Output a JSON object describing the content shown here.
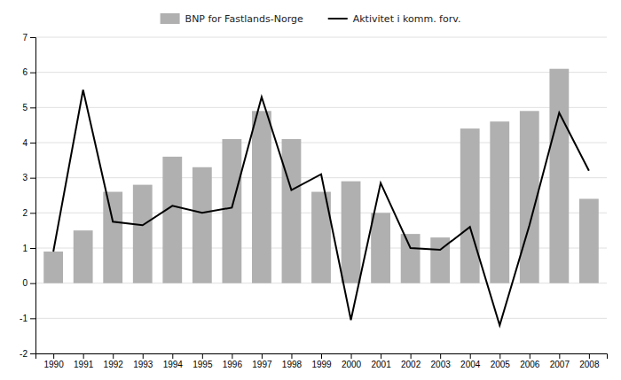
{
  "chart_data": {
    "type": "bar",
    "x": [
      1990,
      1991,
      1992,
      1993,
      1994,
      1995,
      1996,
      1997,
      1998,
      1999,
      2000,
      2001,
      2002,
      2003,
      2004,
      2005,
      2006,
      2007,
      2008
    ],
    "xlim": [
      1989.4,
      2008.6
    ],
    "xticks": [
      1990,
      1991,
      1992,
      1993,
      1994,
      1995,
      1996,
      1997,
      1998,
      1999,
      2000,
      2001,
      2002,
      2003,
      2004,
      2005,
      2006,
      2007,
      2008
    ],
    "ylim": [
      -2,
      7
    ],
    "yticks": [
      -2,
      -1,
      0,
      1,
      2,
      3,
      4,
      5,
      6,
      7
    ],
    "grid": true,
    "legend": "top",
    "series": [
      {
        "name": "BNP for Fastlands-Norge",
        "type": "bar",
        "color": "#b0b0b0",
        "values": [
          0.9,
          1.5,
          2.6,
          2.8,
          3.6,
          3.3,
          4.1,
          4.9,
          4.1,
          2.6,
          2.9,
          2.0,
          1.4,
          1.3,
          4.4,
          4.6,
          4.9,
          6.1,
          2.4
        ]
      },
      {
        "name": "Aktivitet i komm. forv.",
        "type": "line",
        "color": "#000000",
        "values": [
          0.9,
          5.5,
          1.75,
          1.65,
          2.2,
          2.0,
          2.15,
          5.3,
          2.65,
          3.1,
          -1.05,
          2.85,
          1.0,
          0.95,
          1.6,
          -1.2,
          1.65,
          4.85,
          3.2
        ]
      }
    ]
  }
}
